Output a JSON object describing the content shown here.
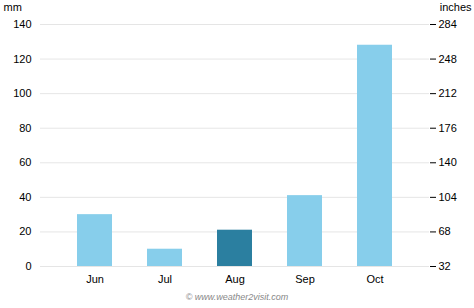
{
  "chart_data": {
    "type": "bar",
    "categories": [
      "Jun",
      "Jul",
      "Aug",
      "Sep",
      "Oct"
    ],
    "values": [
      30,
      10,
      21,
      41,
      128
    ],
    "colors": [
      "#87CEEB",
      "#87CEEB",
      "#2B7FA0",
      "#87CEEB",
      "#87CEEB"
    ],
    "ylabel": "mm",
    "y2label": "inches",
    "ylim": [
      0,
      140
    ],
    "yticks": [
      0,
      20,
      40,
      60,
      80,
      100,
      120,
      140
    ],
    "y2lim": [
      32,
      284
    ],
    "y2ticks": [
      32,
      68,
      104,
      140,
      176,
      212,
      248,
      284
    ],
    "grid": true,
    "annotations": [
      "© www.weather2visit.com"
    ]
  }
}
